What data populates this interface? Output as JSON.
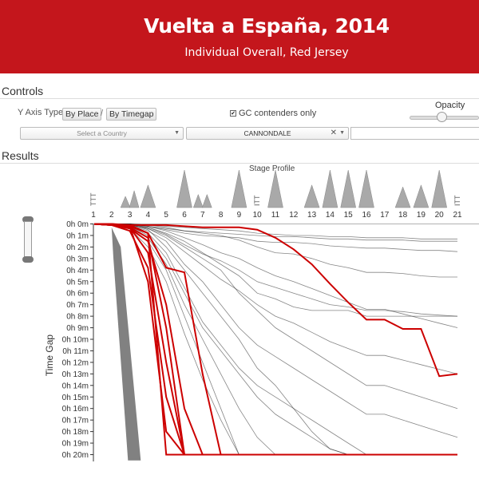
{
  "header": {
    "title": "Vuelta a España, 2014",
    "subtitle": "Individual Overall, Red Jersey",
    "color": "#c4161c"
  },
  "controls": {
    "title": "Controls",
    "y_axis_type_label": "Y Axis Type",
    "by_place_label": "By Place",
    "separator": "/",
    "by_timegap_label": "By Timegap",
    "gc_only_label": "GC contenders only",
    "gc_only_checked": true,
    "opacity_label": "Opacity",
    "opacity_value": 0.45,
    "country_placeholder": "Select a Country",
    "team_value": "CANNONDALE",
    "rider_value": ""
  },
  "results": {
    "title": "Results",
    "stage_profile_label": "Stage Profile",
    "ttt_label": "TTT",
    "itt_label": "ITT",
    "stages": [
      "1",
      "2",
      "3",
      "4",
      "5",
      "6",
      "7",
      "8",
      "9",
      "10",
      "11",
      "12",
      "13",
      "14",
      "15",
      "16",
      "17",
      "18",
      "19",
      "20",
      "21"
    ],
    "stage_profiles": [
      {
        "stage": "1",
        "type": "TTT",
        "peaks": []
      },
      {
        "stage": "3",
        "type": "road",
        "peaks": [
          0.3,
          0.45
        ]
      },
      {
        "stage": "4",
        "type": "road",
        "peaks": [
          0.6
        ]
      },
      {
        "stage": "6",
        "type": "road",
        "peaks": [
          1.0
        ]
      },
      {
        "stage": "7",
        "type": "road",
        "peaks": [
          0.35,
          0.35
        ]
      },
      {
        "stage": "9",
        "type": "road",
        "peaks": [
          1.0
        ]
      },
      {
        "stage": "10",
        "type": "ITT",
        "peaks": []
      },
      {
        "stage": "11",
        "type": "road",
        "peaks": [
          1.0
        ]
      },
      {
        "stage": "13",
        "type": "road",
        "peaks": [
          0.6
        ]
      },
      {
        "stage": "14",
        "type": "road",
        "peaks": [
          1.0
        ]
      },
      {
        "stage": "15",
        "type": "road",
        "peaks": [
          1.0
        ]
      },
      {
        "stage": "16",
        "type": "road",
        "peaks": [
          1.0
        ]
      },
      {
        "stage": "18",
        "type": "road",
        "peaks": [
          0.55
        ]
      },
      {
        "stage": "19",
        "type": "road",
        "peaks": [
          0.6
        ]
      },
      {
        "stage": "20",
        "type": "road",
        "peaks": [
          1.0
        ]
      },
      {
        "stage": "21",
        "type": "ITT",
        "peaks": []
      }
    ]
  },
  "chart_data": {
    "type": "line",
    "ylabel": "Time Gap",
    "xlabel": "",
    "x": [
      1,
      2,
      3,
      4,
      5,
      6,
      7,
      8,
      9,
      10,
      11,
      12,
      13,
      14,
      15,
      16,
      17,
      18,
      19,
      20,
      21
    ],
    "ylim": [
      0,
      20
    ],
    "y_ticks": [
      "0h 0m",
      "0h 1m",
      "0h 2m",
      "0h 3m",
      "0h 4m",
      "0h 5m",
      "0h 6m",
      "0h 7m",
      "0h 8m",
      "0h 9m",
      "0h 10m",
      "0h 11m",
      "0h 12m",
      "0h 13m",
      "0h 14m",
      "0h 15m",
      "0h 16m",
      "0h 17m",
      "0h 18m",
      "0h 19m",
      "0h 20m"
    ],
    "y_reversed": true,
    "grid": false,
    "highlight_color": "#cc0000",
    "background_color": "#222222",
    "series": [
      {
        "highlight": true,
        "values": [
          0,
          0.1,
          0.1,
          0.1,
          0.1,
          0.2,
          0.3,
          0.3,
          0.3,
          0.5,
          1.2,
          2.2,
          3.5,
          5.2,
          6.8,
          8.3,
          8.3,
          9.1,
          9.1,
          13.2,
          13.0
        ]
      },
      {
        "highlight": true,
        "values": [
          0,
          0,
          0.1,
          0.8,
          20,
          20,
          20,
          20,
          20,
          20,
          20,
          20,
          20,
          20,
          20,
          20,
          20,
          20,
          20,
          20,
          20
        ]
      },
      {
        "highlight": true,
        "values": [
          0,
          0.1,
          0.3,
          2.5,
          12,
          20,
          20,
          20,
          20,
          20,
          20,
          20,
          20,
          20,
          20,
          20,
          20,
          20,
          20,
          20,
          20
        ]
      },
      {
        "highlight": true,
        "values": [
          0,
          0.1,
          0.6,
          3.8,
          15,
          20,
          20,
          20,
          20,
          20,
          20,
          20,
          20,
          20,
          20,
          20,
          20,
          20,
          20,
          20,
          20
        ]
      },
      {
        "highlight": true,
        "values": [
          0,
          0.1,
          0.2,
          5.0,
          18,
          20,
          20,
          20,
          20,
          20,
          20,
          20,
          20,
          20,
          20,
          20,
          20,
          20,
          20,
          20,
          20
        ]
      },
      {
        "highlight": true,
        "values": [
          0,
          0.1,
          0.4,
          1.5,
          7,
          16,
          20,
          20,
          20,
          20,
          20,
          20,
          20,
          20,
          20,
          20,
          20,
          20,
          20,
          20,
          20
        ]
      },
      {
        "highlight": true,
        "values": [
          0,
          0,
          0.2,
          0.8,
          3.8,
          4.2,
          13,
          20,
          20,
          20,
          20,
          20,
          20,
          20,
          20,
          20,
          20,
          20,
          20,
          20,
          20
        ]
      },
      {
        "highlight": true,
        "values": [
          0,
          0.1,
          0.3,
          1.2,
          9,
          20,
          20,
          20,
          20,
          20,
          20,
          20,
          20,
          20,
          20,
          20,
          20,
          20,
          20,
          20,
          20
        ]
      },
      {
        "highlight": false,
        "values": [
          0,
          0,
          0,
          0.3,
          0.8,
          1.5,
          2.5,
          3.5,
          4.5,
          6.0,
          6.5,
          7.2,
          7.5,
          7.5,
          7.5,
          8.0,
          8.0,
          8.0,
          8.0,
          8.0,
          8.0
        ]
      },
      {
        "highlight": false,
        "values": [
          0,
          0,
          0,
          0.2,
          0.5,
          0.8,
          1.0,
          1.1,
          1.2,
          1.5,
          1.6,
          1.6,
          1.7,
          1.9,
          2.0,
          2.1,
          2.1,
          2.2,
          2.3,
          2.3,
          2.4
        ]
      },
      {
        "highlight": false,
        "values": [
          0,
          0,
          0.1,
          0.2,
          0.4,
          0.6,
          0.7,
          0.8,
          0.9,
          1.0,
          1.1,
          1.1,
          1.2,
          1.3,
          1.3,
          1.4,
          1.4,
          1.4,
          1.5,
          1.5,
          1.5
        ]
      },
      {
        "highlight": false,
        "values": [
          0,
          0,
          0,
          0.1,
          0.3,
          0.6,
          0.8,
          1.0,
          1.4,
          2.0,
          2.5,
          2.6,
          3.0,
          3.5,
          3.8,
          4.2,
          4.2,
          4.3,
          4.5,
          4.6,
          4.6
        ]
      },
      {
        "highlight": false,
        "values": [
          0,
          0,
          0.1,
          0.4,
          1.0,
          2.0,
          3.0,
          4.0,
          6.0,
          7.5,
          9.0,
          10.0,
          11.0,
          12.0,
          13.0,
          14.0,
          14.0,
          14.5,
          15.0,
          15.5,
          16.0
        ]
      },
      {
        "highlight": false,
        "values": [
          0,
          0,
          0,
          0.5,
          2.0,
          4.0,
          6.0,
          8.0,
          10.0,
          12.5,
          14.0,
          16.0,
          18.0,
          19.5,
          20,
          20,
          20,
          20,
          20,
          20,
          20
        ]
      },
      {
        "highlight": false,
        "values": [
          0,
          0.1,
          0.3,
          1.5,
          4.0,
          8.0,
          12.0,
          16.0,
          20,
          20,
          20,
          20,
          20,
          20,
          20,
          20,
          20,
          20,
          20,
          20,
          20
        ]
      },
      {
        "highlight": false,
        "values": [
          0,
          0,
          0.2,
          1.0,
          3.0,
          6.0,
          9.0,
          11.0,
          13.0,
          15.0,
          16.5,
          17.5,
          18.5,
          19.5,
          20,
          20,
          20,
          20,
          20,
          20,
          20
        ]
      },
      {
        "highlight": false,
        "values": [
          0,
          0,
          0.1,
          0.3,
          0.9,
          1.8,
          2.6,
          3.2,
          4.0,
          5.0,
          5.5,
          6.0,
          6.5,
          7.0,
          7.2,
          7.5,
          7.5,
          7.6,
          7.8,
          7.9,
          8.0
        ]
      },
      {
        "highlight": false,
        "values": [
          0,
          0,
          0,
          0.2,
          0.6,
          1.2,
          1.8,
          2.5,
          3.0,
          3.8,
          4.5,
          5.0,
          5.6,
          6.2,
          6.8,
          7.4,
          7.4,
          7.8,
          8.2,
          8.6,
          9.0
        ]
      },
      {
        "highlight": false,
        "values": [
          0,
          0,
          0.1,
          0.6,
          1.5,
          3.5,
          5.0,
          7.0,
          9.0,
          10.5,
          11.5,
          12.5,
          13.5,
          14.5,
          15.5,
          16.5,
          16.5,
          17.0,
          17.5,
          18.0,
          18.5
        ]
      },
      {
        "highlight": false,
        "values": [
          0,
          0,
          0.1,
          0.8,
          2.5,
          5.5,
          8.5,
          10.5,
          12.5,
          14.0,
          15.0,
          16.0,
          17.0,
          18.0,
          19.0,
          20,
          20,
          20,
          20,
          20,
          20
        ]
      },
      {
        "highlight": false,
        "values": [
          0,
          0,
          0,
          0.1,
          0.2,
          0.3,
          0.4,
          0.5,
          0.6,
          0.8,
          0.9,
          1.0,
          1.0,
          1.1,
          1.1,
          1.2,
          1.2,
          1.2,
          1.3,
          1.3,
          1.3
        ]
      },
      {
        "highlight": false,
        "values": [
          0,
          0,
          0.2,
          1.2,
          3.5,
          7.0,
          10.0,
          13.0,
          16.0,
          18.5,
          20,
          20,
          20,
          20,
          20,
          20,
          20,
          20,
          20,
          20,
          20
        ]
      },
      {
        "highlight": false,
        "values": [
          0,
          0.1,
          0.4,
          2.0,
          5.0,
          9.5,
          13.5,
          17.0,
          20,
          20,
          20,
          20,
          20,
          20,
          20,
          20,
          20,
          20,
          20,
          20,
          20
        ]
      },
      {
        "highlight": false,
        "values": [
          0,
          0,
          0.1,
          0.4,
          1.2,
          2.4,
          3.6,
          4.8,
          5.8,
          7.0,
          8.0,
          8.6,
          9.4,
          10.2,
          10.8,
          11.4,
          11.4,
          11.8,
          12.2,
          12.6,
          13.0
        ]
      }
    ]
  }
}
